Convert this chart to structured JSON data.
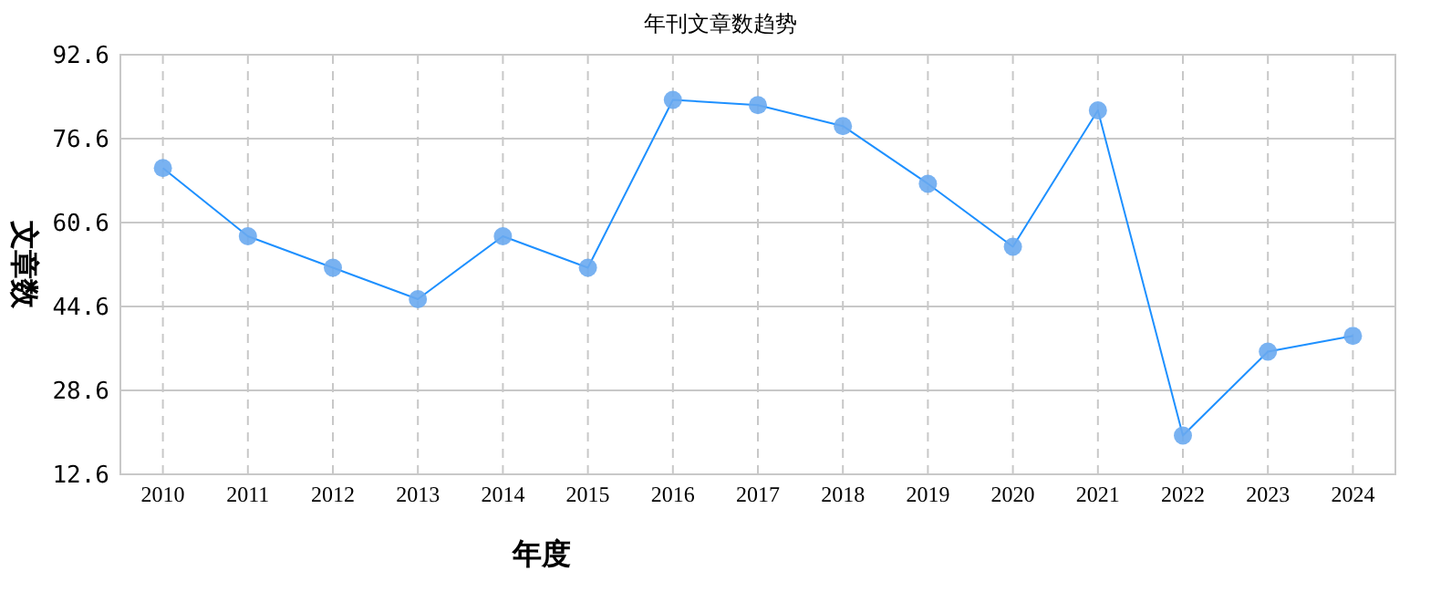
{
  "chart_data": {
    "type": "line",
    "title": "年刊文章数趋势",
    "xlabel": "年度",
    "ylabel": "文章数",
    "categories": [
      "2010",
      "2011",
      "2012",
      "2013",
      "2014",
      "2015",
      "2016",
      "2017",
      "2018",
      "2019",
      "2020",
      "2021",
      "2022",
      "2023",
      "2024"
    ],
    "series": [
      {
        "color": "#1e90ff",
        "values": [
          71,
          58,
          52,
          46,
          58,
          52,
          84,
          83,
          79,
          68,
          56,
          82,
          20,
          36,
          39
        ]
      }
    ],
    "ylim": [
      12.6,
      92.6
    ],
    "yticks": [
      12.6,
      28.6,
      44.6,
      60.6,
      76.6,
      92.6
    ],
    "grid": true,
    "marker": "circle",
    "line_style": "solid"
  }
}
